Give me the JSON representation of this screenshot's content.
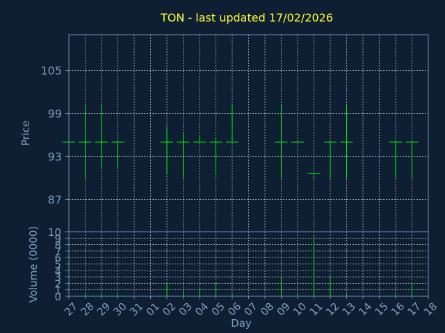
{
  "chart_data": {
    "type": "ohlc",
    "title": "TON - last updated 17/02/2026",
    "xlabel": "Day",
    "price_panel": {
      "ylabel": "Price",
      "ylim": [
        82.5,
        110
      ],
      "yticks": [
        87,
        93,
        99,
        105
      ]
    },
    "volume_panel": {
      "ylabel": "Volume (0000)",
      "ylim": [
        0,
        10
      ],
      "yticks": [
        0,
        1,
        2,
        3,
        4,
        5,
        6,
        7,
        8,
        9,
        10
      ]
    },
    "x_ticks": [
      "27",
      "28",
      "29",
      "30",
      "31",
      "01",
      "02",
      "03",
      "04",
      "05",
      "06",
      "07",
      "08",
      "09",
      "10",
      "11",
      "12",
      "13",
      "14",
      "15",
      "16",
      "17",
      "18"
    ],
    "bars": [
      {
        "day": "27",
        "open": 95.0,
        "high": 95.0,
        "low": 95.0,
        "close": 95.0,
        "volume": 0
      },
      {
        "day": "28",
        "open": 95.0,
        "high": 100.2,
        "low": 89.9,
        "close": 95.0,
        "volume": 0.4
      },
      {
        "day": "29",
        "open": 95.0,
        "high": 100.2,
        "low": 91.3,
        "close": 95.0,
        "volume": 0.5
      },
      {
        "day": "30",
        "open": 95.0,
        "high": 95.0,
        "low": 91.4,
        "close": 95.0,
        "volume": 0.3
      },
      {
        "day": "02",
        "open": 95.0,
        "high": 97.1,
        "low": 90.5,
        "close": 95.0,
        "volume": 2.2
      },
      {
        "day": "03",
        "open": 95.0,
        "high": 96.3,
        "low": 89.9,
        "close": 95.0,
        "volume": 0.9
      },
      {
        "day": "04",
        "open": 95.0,
        "high": 96.0,
        "low": 95.0,
        "close": 95.0,
        "volume": 1.1
      },
      {
        "day": "05",
        "open": 95.0,
        "high": 95.6,
        "low": 90.4,
        "close": 95.0,
        "volume": 2.1
      },
      {
        "day": "06",
        "open": 95.0,
        "high": 100.2,
        "low": 95.0,
        "close": 95.0,
        "volume": 0.3
      },
      {
        "day": "09",
        "open": 95.0,
        "high": 100.2,
        "low": 89.9,
        "close": 95.0,
        "volume": 3.0
      },
      {
        "day": "10",
        "open": 95.0,
        "high": 95.0,
        "low": 95.0,
        "close": 95.0,
        "volume": 0.3
      },
      {
        "day": "11",
        "open": 90.6,
        "high": 90.6,
        "low": 89.9,
        "close": 90.6,
        "volume": 9.3
      },
      {
        "day": "12",
        "open": 95.0,
        "high": 95.0,
        "low": 89.9,
        "close": 95.0,
        "volume": 3.0
      },
      {
        "day": "13",
        "open": 95.0,
        "high": 100.2,
        "low": 89.9,
        "close": 95.0,
        "volume": 0.3
      },
      {
        "day": "16",
        "open": 95.0,
        "high": 95.0,
        "low": 89.9,
        "close": 95.0,
        "volume": 0.3
      },
      {
        "day": "17",
        "open": 95.0,
        "high": 95.0,
        "low": 89.9,
        "close": 95.0,
        "volume": 2.0
      }
    ]
  }
}
